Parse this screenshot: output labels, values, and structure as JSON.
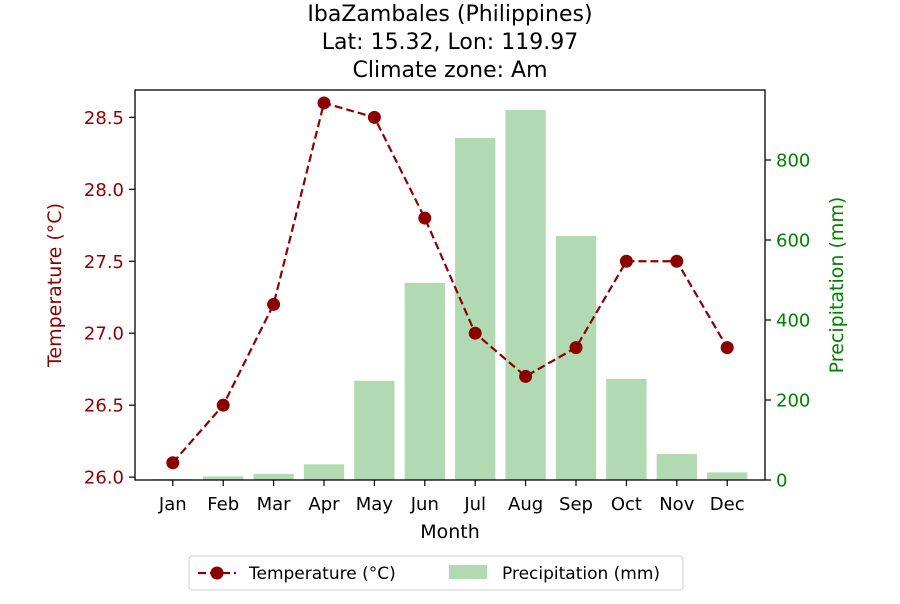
{
  "chart_data": {
    "type": "bar+line",
    "title_lines": [
      "IbaZambales (Philippines)",
      "Lat: 15.32, Lon: 119.97",
      "Climate zone: Am"
    ],
    "xlabel": "Month",
    "categories": [
      "Jan",
      "Feb",
      "Mar",
      "Apr",
      "May",
      "Jun",
      "Jul",
      "Aug",
      "Sep",
      "Oct",
      "Nov",
      "Dec"
    ],
    "y_left": {
      "label": "Temperature (°C)",
      "range": [
        25.98,
        28.69
      ],
      "ticks": [
        "26.0",
        "26.5",
        "27.0",
        "27.5",
        "28.0",
        "28.5"
      ],
      "tick_values": [
        26.0,
        26.5,
        27.0,
        27.5,
        28.0,
        28.5
      ],
      "color": "#8b0000"
    },
    "y_right": {
      "label": "Precipitation (mm)",
      "range": [
        0,
        975
      ],
      "ticks": [
        "0",
        "200",
        "400",
        "600",
        "800"
      ],
      "tick_values": [
        0,
        200,
        400,
        600,
        800
      ],
      "color": "#008000"
    },
    "series": [
      {
        "name": "Temperature (°C)",
        "kind": "line",
        "axis": "left",
        "color": "#8b0000",
        "style": "dashed",
        "marker": "circle",
        "values": [
          26.1,
          26.5,
          27.2,
          28.6,
          28.5,
          27.8,
          27.0,
          26.7,
          26.9,
          27.5,
          27.5,
          26.9
        ]
      },
      {
        "name": "Precipitation (mm)",
        "kind": "bar",
        "axis": "right",
        "color": "#b2dab2",
        "values": [
          2,
          9,
          15,
          39,
          248,
          493,
          855,
          925,
          610,
          253,
          65,
          19
        ]
      }
    ],
    "legend": {
      "position": "bottom-center",
      "entries": [
        "Temperature (°C)",
        "Precipitation (mm)"
      ]
    },
    "grid": false
  }
}
